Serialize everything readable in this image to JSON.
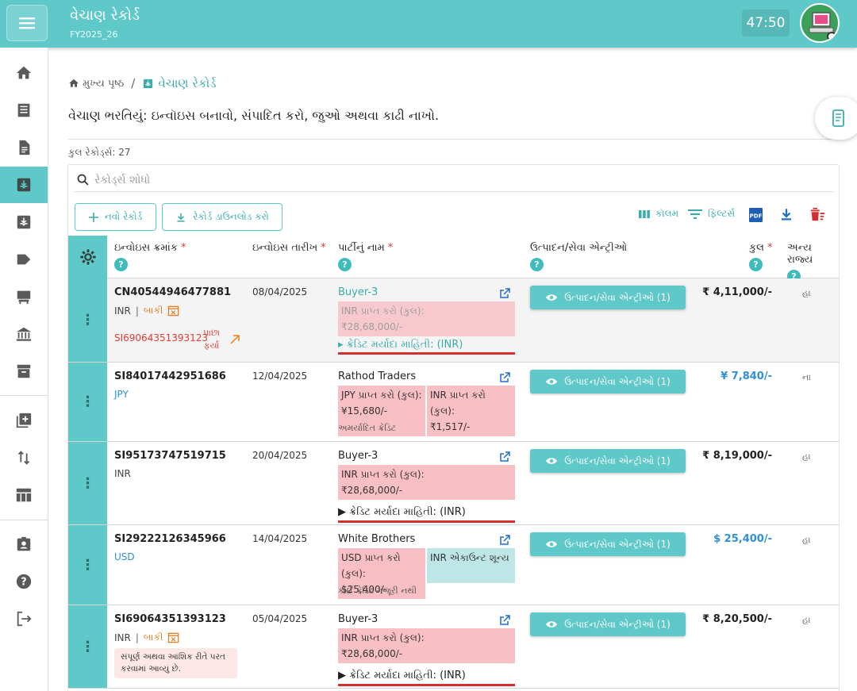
{
  "header": {
    "title": "વેચાણ રેકોર્ડ",
    "fy": "FY2025_26",
    "timer": "47:50"
  },
  "sidebar": {
    "items": [
      "home-icon",
      "list-icon",
      "document-icon",
      "sales-icon",
      "inbox-icon",
      "label-icon",
      "store-icon",
      "bank-icon",
      "archive-icon",
      "add-box-icon",
      "sort-icon",
      "table-icon",
      "badge-icon",
      "help-icon",
      "logout-icon"
    ],
    "active": "sales-icon"
  },
  "breadcrumb": {
    "home": "મુખ્ય પૃષ્ઠ",
    "separator": "/",
    "current": "વેચાણ રેકોર્ડ"
  },
  "page": {
    "description": "વેચાણ ભરતિયું: ઇન્વૉઇસ બનાવો, સંપાદિત કરો, જુઓ અથવા કાઢી નાખો.",
    "total_records": "કુલ રેકોર્ડ્સ: 27"
  },
  "search": {
    "placeholder": "રેકોર્ડ્સ શોધો"
  },
  "toolbar": {
    "new_record": "નવો રેકોર્ડ",
    "download_records": "રેકોર્ડ ડાઉનલોડ કરો",
    "columns": "કૉલમ",
    "filters": "ફિલ્ટર્સ"
  },
  "table": {
    "columns": {
      "invoice_no": "ઇન્વોઇસ ક્રમાંક",
      "invoice_date": "ઇન્વોઇસ તારીખ",
      "party_name": "પાર્ટીનું નામ",
      "products": "ઉત્પાદન/સેવા એન્ટ્રીઓ",
      "total": "કુલ",
      "other_state": "અન્ય રાજ્ય"
    },
    "help_mark": "?",
    "row_menu": "⋮",
    "product_button": "ઉત્પાદન/સેવા એન્ટ્રીઓ (1)",
    "rows": [
      {
        "invoice_no": "CN40544946477881",
        "currency": "INR",
        "pipe": "|",
        "due": "બાકી",
        "returned_no": "SI69064351393123",
        "returned_label_1": "પાછા",
        "returned_label_2": "ફર્યા",
        "date": "08/04/2025",
        "party": "Buyer-3",
        "pill_1": "INR પ્રાપ્ત કરો (કુલ):",
        "pill_1_amount": "₹28,68,000/-",
        "credit": "▸ ક્રેડિટ મર્યાદા માહિતી: (INR)",
        "total": "₹ 4,11,000/-",
        "other": "હા"
      },
      {
        "invoice_no": "SI84017442951686",
        "currency": "JPY",
        "date": "12/04/2025",
        "party": "Rathod Traders",
        "pill_1": "JPY પ્રાપ્ત કરો (કુલ):",
        "pill_1_amount": "¥15,680/-",
        "pill_2": "INR પ્રાપ્ત કરો (કુલ):",
        "pill_2_amount": "₹1,517/-",
        "muted": "અમર્યાદિત ક્રેડિટ",
        "total": "¥ 7,840/-",
        "other": "ના"
      },
      {
        "invoice_no": "SI95173747519715",
        "currency": "INR",
        "date": "20/04/2025",
        "party": "Buyer-3",
        "pill_1": "INR પ્રાપ્ત કરો (કુલ):",
        "pill_1_amount": "₹28,68,000/-",
        "credit": "▶ ક્રેડિટ મર્યાદા માહિતી: (INR)",
        "total": "₹ 8,19,000/-",
        "other": "હા"
      },
      {
        "invoice_no": "SI29222126345966",
        "currency": "USD",
        "date": "14/04/2025",
        "party": "White Brothers",
        "pill_1": "USD પ્રાપ્ત કરો (કુલ):",
        "pill_1_amount": "$25,400/-",
        "pill_2": "INR એકાઉન્ટ શૂન્ય",
        "muted": "કોઈ ક્રેડિટ મંજૂરી નથી",
        "total": "$ 25,400/-",
        "other": "હા"
      },
      {
        "invoice_no": "SI69064351393123",
        "currency": "INR",
        "pipe": "|",
        "due": "બાકી",
        "note": "સંપૂર્ણ અથવા આંશિક રીતે પરત કરવામાં આવ્યું છે.",
        "date": "05/04/2025",
        "party": "Buyer-3",
        "pill_1": "INR પ્રાપ્ત કરો (કુલ):",
        "pill_1_amount": "₹28,68,000/-",
        "credit": "▶ ક્રેડિટ મર્યાદા માહિતી: (INR)",
        "total": "₹ 8,20,500/-",
        "other": "હા"
      }
    ]
  },
  "colors": {
    "primary": "#5fc8c8",
    "accent_text": "#3aacac",
    "pink": "#f8bfc5",
    "cyan": "#bfe6e6",
    "red": "#d32f2f",
    "blue": "#2f8fd8"
  }
}
